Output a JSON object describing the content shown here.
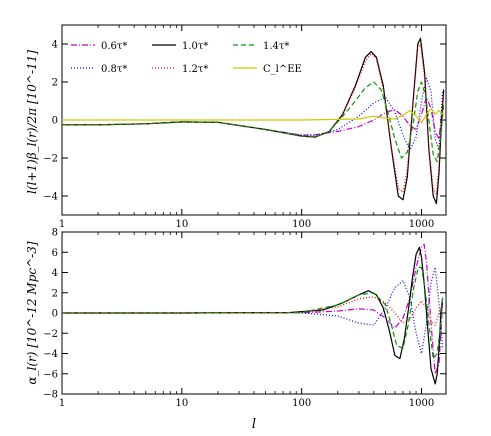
{
  "figure": {
    "xlabel": "l"
  },
  "chart_data": [
    {
      "type": "line",
      "panel": "top",
      "ylabel": "l(l+1)β_l(r)/2π  [10^-11]",
      "xscale": "log",
      "xlim": [
        1,
        1600
      ],
      "ylim": [
        -5,
        5
      ],
      "xticks": [
        1,
        10,
        100,
        1000
      ],
      "xtick_labels": [
        "1",
        "10",
        "100",
        "1000"
      ],
      "yticks": [
        -4,
        -2,
        0,
        2,
        4
      ],
      "ytick_labels": [
        "−4",
        "−2",
        "0",
        "2",
        "4"
      ],
      "legend_position": "top-left",
      "series": [
        {
          "name": "0.6τ*",
          "color": "#cc00cc",
          "dash": "dashdot",
          "x": [
            1,
            2,
            5,
            10,
            20,
            50,
            100,
            130,
            200,
            300,
            400,
            500,
            600,
            700,
            800,
            900,
            1000,
            1100,
            1200,
            1300,
            1400,
            1500
          ],
          "y": [
            -0.25,
            -0.25,
            -0.2,
            -0.1,
            -0.12,
            -0.5,
            -0.8,
            -0.78,
            -0.6,
            -0.35,
            0.0,
            0.4,
            0.55,
            0.2,
            -0.3,
            -0.5,
            0.3,
            1.2,
            0.6,
            -0.6,
            -1.0,
            0.8
          ]
        },
        {
          "name": "0.8τ*",
          "color": "#0000ee",
          "dash": "dotted",
          "x": [
            1,
            2,
            5,
            10,
            20,
            50,
            100,
            130,
            200,
            300,
            400,
            500,
            600,
            700,
            800,
            900,
            1000,
            1100,
            1200,
            1300,
            1400,
            1500
          ],
          "y": [
            -0.25,
            -0.25,
            -0.2,
            -0.1,
            -0.12,
            -0.5,
            -0.8,
            -0.8,
            -0.5,
            0.2,
            0.9,
            1.2,
            0.4,
            -0.8,
            -1.6,
            -0.9,
            1.0,
            2.2,
            1.5,
            -1.0,
            -1.6,
            1.5
          ]
        },
        {
          "name": "1.0τ*",
          "color": "#000000",
          "dash": "solid",
          "x": [
            1,
            2,
            5,
            10,
            20,
            50,
            100,
            130,
            170,
            220,
            280,
            340,
            380,
            420,
            480,
            560,
            640,
            700,
            760,
            850,
            930,
            980,
            1060,
            1150,
            1250,
            1330,
            1400,
            1470,
            1530
          ],
          "y": [
            -0.25,
            -0.25,
            -0.2,
            -0.1,
            -0.12,
            -0.5,
            -0.85,
            -0.9,
            -0.6,
            0.3,
            1.8,
            3.3,
            3.6,
            3.3,
            1.8,
            -1.5,
            -4.0,
            -4.2,
            -3.0,
            1.0,
            4.0,
            4.3,
            2.5,
            -1.5,
            -4.0,
            -4.4,
            -2.8,
            0.0,
            1.6
          ]
        },
        {
          "name": "1.2τ*",
          "color": "#ee0000",
          "dash": "dotted",
          "x": [
            1,
            2,
            5,
            10,
            20,
            50,
            100,
            130,
            170,
            220,
            280,
            340,
            380,
            420,
            480,
            560,
            640,
            700,
            760,
            850,
            930,
            980,
            1060,
            1150,
            1250,
            1330,
            1400,
            1470,
            1530
          ],
          "y": [
            -0.25,
            -0.25,
            -0.2,
            -0.1,
            -0.12,
            -0.5,
            -0.85,
            -0.9,
            -0.6,
            0.3,
            1.7,
            3.1,
            3.5,
            3.2,
            1.6,
            -1.4,
            -3.6,
            -3.8,
            -2.6,
            0.9,
            3.8,
            4.0,
            2.2,
            -1.4,
            -3.6,
            -3.9,
            -2.4,
            0.0,
            1.4
          ]
        },
        {
          "name": "1.4τ*",
          "color": "#009900",
          "dash": "dashed",
          "x": [
            1,
            2,
            5,
            10,
            20,
            50,
            100,
            130,
            170,
            220,
            280,
            340,
            400,
            460,
            520,
            600,
            680,
            760,
            850,
            930,
            1000,
            1080,
            1150,
            1250,
            1350,
            1450,
            1530
          ],
          "y": [
            -0.25,
            -0.25,
            -0.2,
            -0.1,
            -0.12,
            -0.5,
            -0.85,
            -0.88,
            -0.6,
            0.2,
            1.0,
            1.7,
            2.0,
            1.6,
            0.5,
            -1.0,
            -2.0,
            -1.7,
            -0.2,
            1.5,
            2.0,
            1.3,
            0.0,
            -1.8,
            -2.2,
            -0.8,
            0.8
          ]
        },
        {
          "name": "C_l^EE",
          "color": "#cccc00",
          "dash": "solid",
          "x": [
            1,
            10,
            100,
            300,
            400,
            500,
            600,
            700,
            800,
            900,
            1000,
            1100,
            1200,
            1300,
            1400,
            1500
          ],
          "y": [
            0.0,
            0.0,
            0.0,
            0.05,
            0.2,
            0.1,
            0.05,
            0.25,
            0.5,
            0.2,
            -0.15,
            0.3,
            0.6,
            0.3,
            0.5,
            0.3
          ]
        }
      ]
    },
    {
      "type": "line",
      "panel": "bottom",
      "ylabel": "α_l(r)  [10^-12 Mpc^-3]",
      "xlabel": "l",
      "xscale": "log",
      "xlim": [
        1,
        1600
      ],
      "ylim": [
        -8,
        8
      ],
      "xticks": [
        1,
        10,
        100,
        1000
      ],
      "xtick_labels": [
        "1",
        "10",
        "100",
        "1000"
      ],
      "yticks": [
        -8,
        -6,
        -4,
        -2,
        0,
        2,
        4,
        6,
        8
      ],
      "ytick_labels": [
        "−8",
        "−6",
        "−4",
        "−2",
        "0",
        "2",
        "4",
        "6",
        "8"
      ],
      "series": [
        {
          "name": "0.6τ*",
          "color": "#cc00cc",
          "dash": "dashdot",
          "x": [
            1,
            10,
            100,
            200,
            300,
            400,
            500,
            600,
            700,
            800,
            900,
            1000,
            1050,
            1100,
            1200,
            1300,
            1400,
            1500
          ],
          "y": [
            0.0,
            0.0,
            0.02,
            0.2,
            0.4,
            0.3,
            -0.5,
            -1.5,
            -0.5,
            1.5,
            4.5,
            6.5,
            6.8,
            5.0,
            -1.0,
            -6.0,
            -5.0,
            1.0
          ]
        },
        {
          "name": "0.8τ*",
          "color": "#0000ee",
          "dash": "dotted",
          "x": [
            1,
            10,
            100,
            200,
            300,
            400,
            500,
            600,
            700,
            800,
            900,
            1000,
            1100,
            1200,
            1300,
            1400,
            1500
          ],
          "y": [
            0.0,
            0.0,
            0.02,
            -0.3,
            -1.0,
            -1.2,
            0.5,
            2.5,
            3.2,
            1.5,
            -2.0,
            -4.0,
            -1.0,
            3.0,
            4.5,
            1.0,
            -3.5
          ]
        },
        {
          "name": "1.0τ*",
          "color": "#000000",
          "dash": "solid",
          "x": [
            1,
            10,
            80,
            150,
            220,
            300,
            360,
            420,
            480,
            540,
            600,
            660,
            720,
            780,
            840,
            900,
            960,
            1000,
            1050,
            1100,
            1200,
            1300,
            1350,
            1400,
            1450,
            1500
          ],
          "y": [
            0.0,
            0.0,
            0.05,
            0.3,
            1.0,
            1.8,
            2.2,
            1.8,
            0.5,
            -1.8,
            -4.2,
            -4.5,
            -2.5,
            0.5,
            3.5,
            5.8,
            6.5,
            5.5,
            3.0,
            0.0,
            -5.5,
            -7.0,
            -6.0,
            -3.5,
            0.0,
            1.5
          ]
        },
        {
          "name": "1.2τ*",
          "color": "#ee0000",
          "dash": "dotted",
          "x": [
            1,
            10,
            100,
            200,
            300,
            400,
            500,
            600,
            700,
            800,
            900,
            1000,
            1100,
            1200,
            1300,
            1400,
            1500
          ],
          "y": [
            0.0,
            0.0,
            0.05,
            0.6,
            1.4,
            1.6,
            1.0,
            0.0,
            -1.0,
            -0.6,
            0.5,
            1.2,
            0.5,
            -0.8,
            -1.2,
            0.0,
            1.0
          ]
        },
        {
          "name": "1.4τ*",
          "color": "#009900",
          "dash": "dashed",
          "x": [
            1,
            10,
            100,
            200,
            300,
            400,
            500,
            560,
            620,
            700,
            780,
            860,
            940,
            1000,
            1080,
            1150,
            1250,
            1350,
            1450,
            1500
          ],
          "y": [
            0.0,
            0.0,
            0.05,
            0.8,
            1.8,
            2.0,
            0.8,
            -1.2,
            -3.2,
            -3.5,
            -1.0,
            2.5,
            4.5,
            4.5,
            2.0,
            -1.0,
            -4.5,
            -4.0,
            -1.0,
            1.5
          ]
        }
      ]
    }
  ]
}
